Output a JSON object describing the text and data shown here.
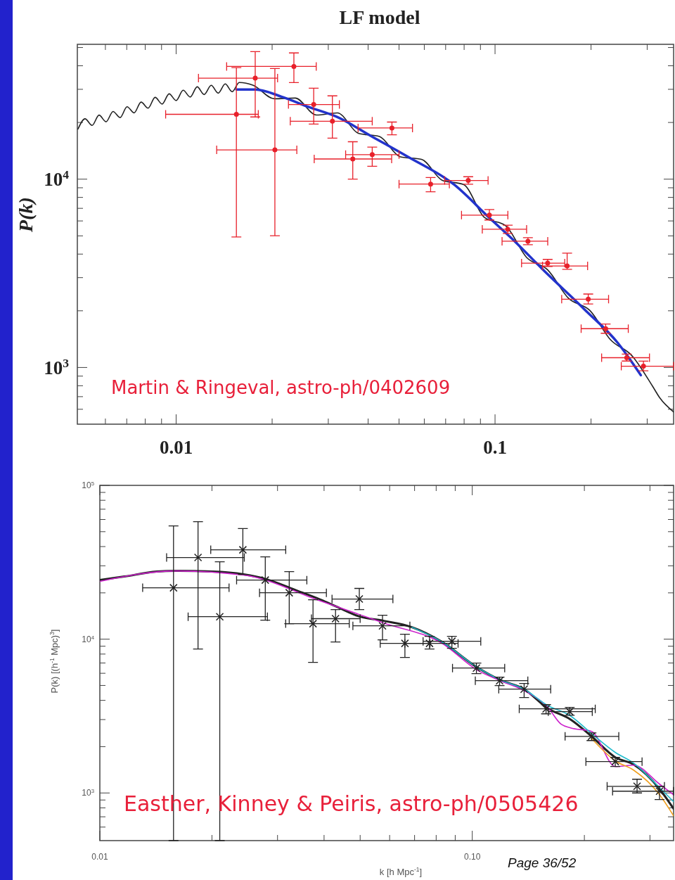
{
  "chart_data": [
    {
      "type": "scatter",
      "title": "LF model",
      "ylabel": "P(k)",
      "log": "xy",
      "xlim": [
        0.0049,
        0.363
      ],
      "ylim": [
        500,
        52000
      ],
      "xticks": [
        {
          "value": 0.006,
          "label": null
        },
        {
          "value": 0.007,
          "label": null
        },
        {
          "value": 0.008,
          "label": null
        },
        {
          "value": 0.009,
          "label": null
        },
        0.01,
        {
          "value": 0.02,
          "label": null
        },
        {
          "value": 0.03,
          "label": null
        },
        {
          "value": 0.04,
          "label": null
        },
        {
          "value": 0.05,
          "label": null
        },
        {
          "value": 0.06,
          "label": null
        },
        {
          "value": 0.07,
          "label": null
        },
        {
          "value": 0.08,
          "label": null
        },
        {
          "value": 0.09,
          "label": null
        },
        0.1,
        {
          "value": 0.2,
          "label": null
        },
        {
          "value": 0.3,
          "label": null
        }
      ],
      "yticks": [
        {
          "value": 600,
          "label": null
        },
        {
          "value": 700,
          "label": null
        },
        {
          "value": 800,
          "label": null
        },
        {
          "value": 900,
          "label": null
        },
        {
          "value": 1000,
          "label": "10$^{3}$"
        },
        {
          "value": 2000,
          "label": null
        },
        {
          "value": 3000,
          "label": null
        },
        {
          "value": 4000,
          "label": null
        },
        {
          "value": 5000,
          "label": null
        },
        {
          "value": 6000,
          "label": null
        },
        {
          "value": 7000,
          "label": null
        },
        {
          "value": 8000,
          "label": null
        },
        {
          "value": 9000,
          "label": null
        },
        {
          "value": 10000,
          "label": "10$^{4}$"
        },
        {
          "value": 20000,
          "label": null
        },
        {
          "value": 30000,
          "label": null
        },
        {
          "value": 40000,
          "label": null
        },
        {
          "value": 50000,
          "label": null
        }
      ],
      "annotations": [
        "Martin & Ringeval, astro-ph/0402609"
      ],
      "series": [
        {
          "type": "line",
          "color": "#222222",
          "x": [
            0.004923,
            0.00518,
            0.005449,
            0.005731,
            0.006029,
            0.006342,
            0.006671,
            0.007017,
            0.007381,
            0.007765,
            0.008168,
            0.008592,
            0.009037,
            0.009506,
            0.01,
            0.01052,
            0.01107,
            0.01164,
            0.01224,
            0.01288,
            0.01355,
            0.01425,
            0.01499,
            0.01577,
            0.01745,
            0.02031,
            0.02363,
            0.02752,
            0.03202,
            0.03728,
            0.04338,
            0.05049,
            0.05877,
            0.06841,
            0.07962,
            0.09268,
            0.1079,
            0.1256,
            0.1462,
            0.1701,
            0.1981,
            0.2305,
            0.2683,
            0.3123,
            0.3285,
            0.363
          ],
          "values": [
            18450,
            20920,
            19290,
            21880,
            20170,
            22880,
            21230,
            24240,
            22490,
            25670,
            23830,
            27200,
            25060,
            28400,
            26160,
            29650,
            27310,
            30950,
            28140,
            31490,
            28630,
            32040,
            29140,
            32600,
            31490,
            26730,
            26960,
            21910,
            22490,
            17520,
            16840,
            13140,
            12750,
            9854,
            9366,
            6256,
            5659,
            3839,
            3299,
            2328,
            2011,
            1400,
            1158,
            792,
            690,
            581
          ]
        },
        {
          "type": "line",
          "color": "#2233cc",
          "x": [
            0.01545,
            0.01772,
            0.02137,
            0.02616,
            0.03202,
            0.04125,
            0.05313,
            0.07457,
            0.09603,
            0.1164,
            0.1411,
            0.1911,
            0.2424,
            0.2865
          ],
          "values": [
            29910,
            29910,
            27440,
            24100,
            21360,
            16780,
            13180,
            9333,
            6223,
            4603,
            3316,
            2029,
            1353,
            910
          ]
        },
        {
          "color": "#e8202a",
          "marker": "circle",
          "x": [
            0.01545,
            0.0177,
            0.0204,
            0.0234,
            0.027,
            0.0309,
            0.0358,
            0.0412,
            0.0475,
            0.0628,
            0.0824,
            0.096,
            0.1096,
            0.1268,
            0.1462,
            0.1683,
            0.196,
            0.2223,
            0.2588,
            0.292
          ],
          "values": [
            22100,
            34400,
            14300,
            39700,
            24900,
            20300,
            12800,
            13500,
            18700,
            9420,
            9840,
            6440,
            5420,
            4680,
            3580,
            3460,
            2305,
            1607,
            1127,
            1016
          ],
          "errors": [
            [
              4930,
              39100
            ],
            [
              21400,
              47600
            ],
            [
              5010,
              38700
            ],
            [
              32600,
              46800
            ],
            [
              19600,
              30400
            ],
            [
              16500,
              27700
            ],
            [
              10000,
              15800
            ],
            [
              11700,
              14800
            ],
            [
              17200,
              20100
            ],
            [
              8570,
              10200
            ],
            [
              9400,
              10300
            ],
            [
              6070,
              6900
            ],
            [
              5150,
              5700
            ],
            [
              4490,
              4890
            ],
            [
              3440,
              3750
            ],
            [
              3320,
              4050
            ],
            [
              2175,
              2455
            ],
            [
              1520,
              1700
            ],
            [
              1082,
              1178
            ],
            [
              960,
              1080
            ]
          ],
          "xerrors": [
            [
              0.00927,
              0.0181
            ],
            [
              0.01175,
              0.0208
            ],
            [
              0.0134,
              0.0239
            ],
            [
              0.0144,
              0.0275
            ],
            [
              0.0225,
              0.0325
            ],
            [
              0.0228,
              0.0412
            ],
            [
              0.0271,
              0.0474
            ],
            [
              0.034,
              0.05
            ],
            [
              0.0372,
              0.0551
            ],
            [
              0.05,
              0.0719
            ],
            [
              0.0695,
              0.0951
            ],
            [
              0.0785,
              0.1097
            ],
            [
              0.0912,
              0.1256
            ],
            [
              0.1052,
              0.1463
            ],
            [
              0.1211,
              0.1654
            ],
            [
              0.1409,
              0.1951
            ],
            [
              0.1618,
              0.227
            ],
            [
              0.1862,
              0.2617
            ],
            [
              0.2159,
              0.305
            ],
            [
              0.2488,
              0.363
            ]
          ]
        }
      ]
    },
    {
      "type": "scatter",
      "xlabel": "k [h Mpc$^{-1}$]",
      "ylabel": "P(k) [(h$^{-1}$ Mpc)$^{3}$]",
      "log": "xy",
      "xlim": [
        0.01,
        0.3472
      ],
      "ylim": [
        490,
        100000
      ],
      "xticks": [
        {
          "value": 0.01,
          "label": "0.01"
        },
        {
          "value": 0.02,
          "label": null
        },
        {
          "value": 0.03,
          "label": null
        },
        {
          "value": 0.04,
          "label": null
        },
        {
          "value": 0.05,
          "label": null
        },
        {
          "value": 0.06,
          "label": null
        },
        {
          "value": 0.07,
          "label": null
        },
        {
          "value": 0.08,
          "label": null
        },
        {
          "value": 0.09,
          "label": null
        },
        {
          "value": 0.1,
          "label": "0.10"
        },
        {
          "value": 0.2,
          "label": null
        },
        {
          "value": 0.3,
          "label": null
        }
      ],
      "yticks": [
        {
          "value": 600,
          "label": null
        },
        {
          "value": 700,
          "label": null
        },
        {
          "value": 800,
          "label": null
        },
        {
          "value": 900,
          "label": null
        },
        {
          "value": 1000,
          "label": "10$^{3}$"
        },
        {
          "value": 2000,
          "label": null
        },
        {
          "value": 3000,
          "label": null
        },
        {
          "value": 4000,
          "label": null
        },
        {
          "value": 5000,
          "label": null
        },
        {
          "value": 6000,
          "label": null
        },
        {
          "value": 7000,
          "label": null
        },
        {
          "value": 8000,
          "label": null
        },
        {
          "value": 9000,
          "label": null
        },
        {
          "value": 10000,
          "label": "10$^{4}$"
        },
        {
          "value": 20000,
          "label": null
        },
        {
          "value": 30000,
          "label": null
        },
        {
          "value": 40000,
          "label": null
        },
        {
          "value": 50000,
          "label": null
        },
        {
          "value": 60000,
          "label": null
        },
        {
          "value": 70000,
          "label": null
        },
        {
          "value": 80000,
          "label": null
        },
        {
          "value": 90000,
          "label": null
        },
        {
          "value": 100000,
          "label": "10$^{5}$"
        }
      ],
      "annotations": [
        "Easther, Kinney & Peiris, astro-ph/0505426",
        "Page 36/52"
      ],
      "series": [
        {
          "type": "line",
          "color": "#222222",
          "x": [
            0.01,
            0.01164,
            0.01421,
            0.01597,
            0.0201,
            0.02433,
            0.02807,
            0.03382,
            0.0392,
            0.04331,
            0.04996,
            0.05789,
            0.06887,
            0.08299,
            0.1017,
            0.1189,
            0.1378,
            0.1591,
            0.1835,
            0.209,
            0.2423,
            0.2711,
            0.3184,
            0.3472
          ],
          "values": [
            24230,
            25550,
            27500,
            27790,
            27500,
            26370,
            24490,
            20700,
            18040,
            16230,
            14010,
            13150,
            11960,
            9587,
            6700,
            5428,
            4731,
            3560,
            3008,
            2335,
            1703,
            1532,
            1060,
            789
          ]
        },
        {
          "type": "line",
          "color": "#cc22cc",
          "x": [
            0.01,
            0.01597,
            0.02433,
            0.0392,
            0.05789,
            0.08299,
            0.1031,
            0.1189,
            0.1378,
            0.1591,
            0.1734,
            0.1835,
            0.209,
            0.2423,
            0.2711,
            0.3184,
            0.3472
          ],
          "values": [
            23730,
            27790,
            26090,
            17670,
            12740,
            9387,
            6290,
            5370,
            4632,
            3635,
            2794,
            2651,
            2515,
            1484,
            1516,
            1141,
            974
          ]
        },
        {
          "type": "line",
          "color": "#22bbcc",
          "x": [
            0.06887,
            0.08299,
            0.1017,
            0.1189,
            0.1378,
            0.1591,
            0.1835,
            0.209,
            0.2423,
            0.2711,
            0.3184,
            0.3472
          ],
          "values": [
            11960,
            9587,
            6700,
            5428,
            4731,
            3713,
            3170,
            2435,
            1833,
            1564,
            1082,
            877
          ]
        },
        {
          "type": "line",
          "color": "#f0a020",
          "x": [
            0.209,
            0.2423,
            0.2711,
            0.3184,
            0.3472
          ],
          "values": [
            2264,
            1615,
            1408,
            974,
            710
          ]
        },
        {
          "color": "#222222",
          "marker": "cross",
          "x": [
            0.01577,
            0.01835,
            0.02099,
            0.02421,
            0.02781,
            0.03225,
            0.03736,
            0.04294,
            0.04974,
            0.05741,
            0.06594,
            0.07677,
            0.08817,
            0.1026,
            0.1184,
            0.1378,
            0.1578,
            0.1827,
            0.209,
            0.2421,
            0.277,
            0.3183
          ],
          "values": [
            21580,
            33960,
            14000,
            38100,
            24220,
            20040,
            12610,
            13590,
            18240,
            12210,
            9386,
            9386,
            9689,
            6490,
            5370,
            4733,
            3524,
            3380,
            2334,
            1600,
            1105,
            1027
          ],
          "errors": [
            [
              490,
              54560
            ],
            [
              8630,
              58080
            ],
            [
              490,
              31840
            ],
            [
              26370,
              52360
            ],
            [
              13300,
              34260
            ],
            [
              12610,
              27480
            ],
            [
              7065,
              18040
            ],
            [
              9587,
              15570
            ],
            [
              15570,
              21380
            ],
            [
              9895,
              14320
            ],
            [
              7603,
              10770
            ],
            [
              8630,
              10430
            ],
            [
              8720,
              10430
            ],
            [
              5970,
              6990
            ],
            [
              4990,
              5660
            ],
            [
              4170,
              5155
            ],
            [
              3270,
              3750
            ],
            [
              3200,
              3600
            ],
            [
              2192,
              2460
            ],
            [
              1486,
              1702
            ],
            [
              1000,
              1228
            ],
            [
              906,
              1105
            ]
          ],
          "xerrors": [
            [
              0.01303,
              0.02223
            ],
            [
              0.01511,
              0.02443
            ],
            [
              0.01726,
              0.02818
            ],
            [
              0.01985,
              0.03156
            ],
            [
              0.02329,
              0.03596
            ],
            [
              0.02684,
              0.04058
            ],
            [
              0.03155,
              0.04675
            ],
            [
              0.037,
              0.05
            ],
            [
              0.04202,
              0.06122
            ],
            [
              0.0478,
              0.068
            ],
            [
              0.0566,
              0.077
            ],
            [
              0.0659,
              0.0916
            ],
            [
              0.07378,
              0.1054
            ],
            [
              0.0885,
              0.1222
            ],
            [
              0.1019,
              0.141
            ],
            [
              0.1178,
              0.1624
            ],
            [
              0.1337,
              0.2139
            ],
            [
              0.16,
              0.21
            ],
            [
              0.1775,
              0.2474
            ],
            [
              0.2019,
              0.2857
            ],
            [
              0.2302,
              0.3281
            ],
            [
              0.2381,
              0.3471
            ]
          ]
        }
      ]
    }
  ]
}
